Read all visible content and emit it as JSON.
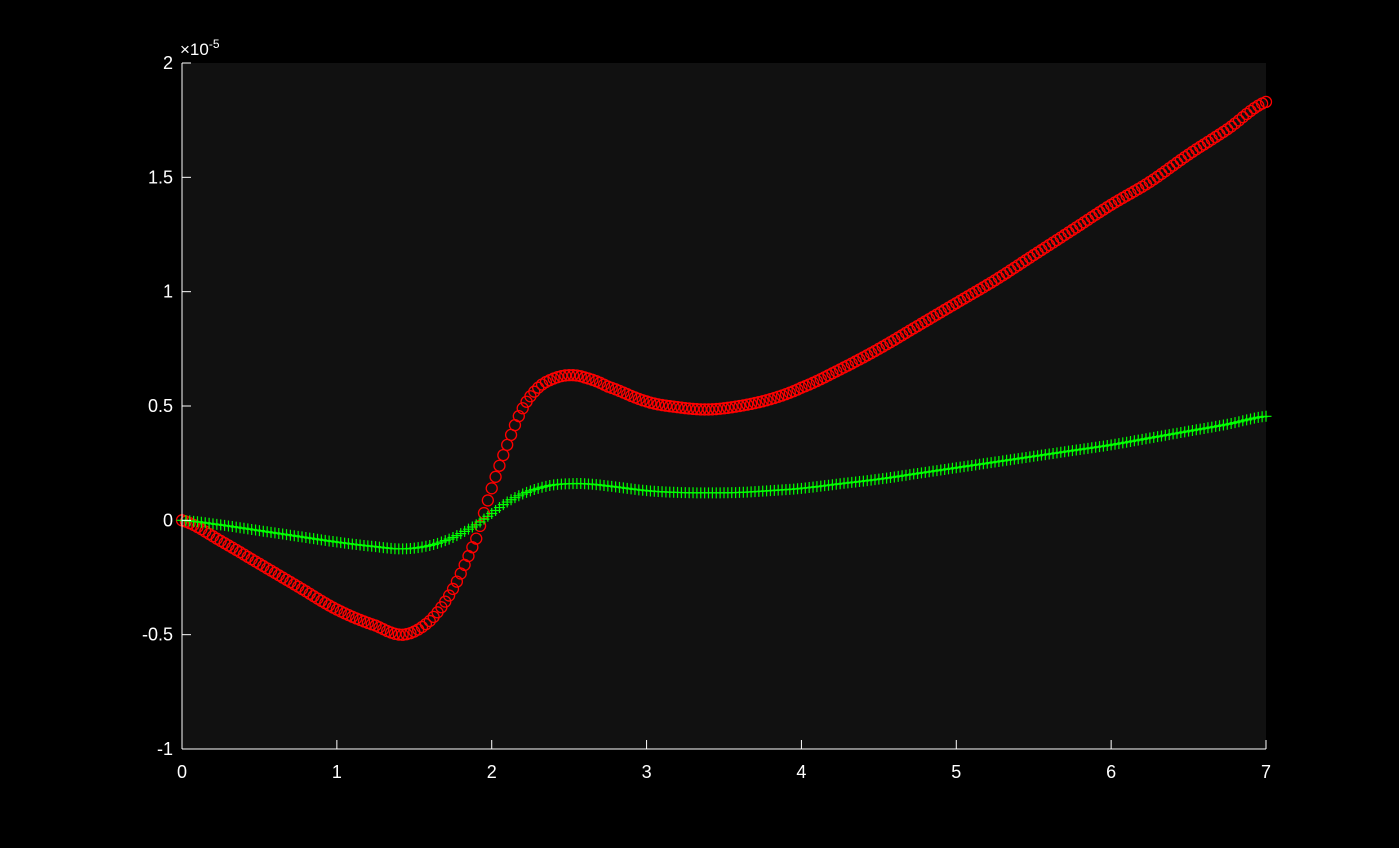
{
  "colors": {
    "figure_bg": "#000000",
    "axes_bg": "#111111",
    "axis_color": "#ffffff",
    "series_red": "#ff0000",
    "series_green": "#00ff00"
  },
  "chart_data": {
    "type": "scatter",
    "title": "",
    "xlabel": "",
    "ylabel": "",
    "xlim": [
      0,
      7
    ],
    "ylim": [
      -1,
      2
    ],
    "exponent_label": "×10",
    "exponent_power": "-5",
    "y_multiplier": 1e-05,
    "grid": false,
    "xticks": [
      "0",
      "1",
      "2",
      "3",
      "4",
      "5",
      "6",
      "7"
    ],
    "yticks": [
      "-1",
      "-0.5",
      "0",
      "0.5",
      "1",
      "1.5",
      "2"
    ],
    "xtick_values": [
      0,
      1,
      2,
      3,
      4,
      5,
      6,
      7
    ],
    "ytick_values": [
      -1,
      -0.5,
      0,
      0.5,
      1,
      1.5,
      2
    ],
    "series": [
      {
        "marker": "circle",
        "color": "#ff0000",
        "x": [
          0,
          0.25,
          0.5,
          0.75,
          1.0,
          1.25,
          1.43,
          1.6,
          1.75,
          1.9,
          2.0,
          2.1,
          2.2,
          2.3,
          2.4,
          2.5,
          2.6,
          2.75,
          3.0,
          3.2,
          3.4,
          3.6,
          3.8,
          4.0,
          4.25,
          4.5,
          4.75,
          5.0,
          5.25,
          5.5,
          5.75,
          6.0,
          6.25,
          6.5,
          6.75,
          7.0
        ],
        "y": [
          0,
          -0.09,
          -0.19,
          -0.29,
          -0.39,
          -0.46,
          -0.5,
          -0.44,
          -0.3,
          -0.08,
          0.14,
          0.33,
          0.49,
          0.58,
          0.62,
          0.635,
          0.625,
          0.585,
          0.52,
          0.495,
          0.485,
          0.5,
          0.53,
          0.58,
          0.66,
          0.75,
          0.85,
          0.95,
          1.05,
          1.16,
          1.27,
          1.38,
          1.48,
          1.6,
          1.71,
          1.83
        ]
      },
      {
        "marker": "plus",
        "color": "#00ff00",
        "x": [
          0,
          0.25,
          0.5,
          0.75,
          1.0,
          1.25,
          1.43,
          1.6,
          1.75,
          1.9,
          2.0,
          2.1,
          2.2,
          2.3,
          2.4,
          2.5,
          2.6,
          2.75,
          3.0,
          3.2,
          3.4,
          3.6,
          3.8,
          4.0,
          4.25,
          4.5,
          4.75,
          5.0,
          5.25,
          5.5,
          5.75,
          6.0,
          6.25,
          6.5,
          6.75,
          7.0
        ],
        "y": [
          0,
          -0.02,
          -0.045,
          -0.07,
          -0.095,
          -0.115,
          -0.125,
          -0.11,
          -0.075,
          -0.02,
          0.03,
          0.08,
          0.115,
          0.14,
          0.155,
          0.16,
          0.16,
          0.15,
          0.13,
          0.122,
          0.12,
          0.122,
          0.13,
          0.14,
          0.16,
          0.18,
          0.205,
          0.23,
          0.255,
          0.28,
          0.305,
          0.33,
          0.36,
          0.39,
          0.42,
          0.455
        ]
      }
    ]
  }
}
